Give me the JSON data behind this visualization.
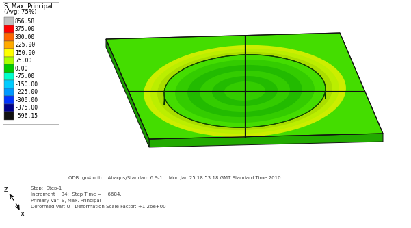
{
  "background_color": "#ffffff",
  "legend_title_line1": "S, Max. Principal",
  "legend_title_line2": "(Avg: 75%)",
  "legend_values": [
    "856.58",
    "375.00",
    "300.00",
    "225.00",
    "150.00",
    "75.00",
    "0.00",
    "-75.00",
    "-150.00",
    "-225.00",
    "-300.00",
    "-375.00",
    "-596.15"
  ],
  "legend_colors": [
    "#c0c0c0",
    "#ff0000",
    "#ff6600",
    "#ffaa00",
    "#ffff00",
    "#aaff00",
    "#00cc00",
    "#00ffcc",
    "#00ccff",
    "#0099ff",
    "#0033ff",
    "#000088",
    "#111111"
  ],
  "footer_line1": "ODB: gn4.odb    Abaqus/Standard 6.9-1    Mon Jan 25 18:53:18 GMT Standard Time 2010",
  "footer_line2": "Step:  Step-1",
  "footer_line3": "Increment    34:  Step Time =    6684.",
  "footer_line4": "Primary Var: S, Max. Principal",
  "footer_line5": "Deformed Var: U   Deformation Scale Factor: +1.26e+00",
  "figsize": [
    6.01,
    3.33
  ],
  "dpi": 100
}
